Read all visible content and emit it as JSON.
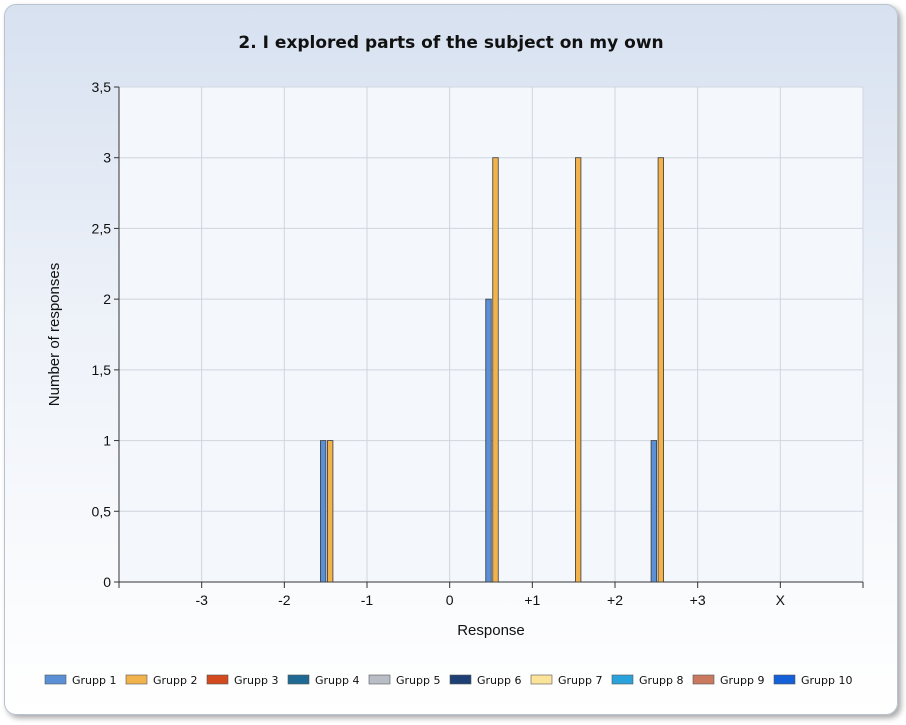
{
  "chart_data": {
    "type": "bar",
    "title": "2. I explored parts of the subject on my own",
    "xlabel": "Response",
    "ylabel": "Number of responses",
    "categories": [
      "-3",
      "-2",
      "-1",
      "0",
      "+1",
      "+2",
      "+3",
      "X"
    ],
    "y_ticks": [
      "0",
      "0,5",
      "1",
      "1,5",
      "2",
      "2,5",
      "3",
      "3,5"
    ],
    "ylim": [
      0,
      3.5
    ],
    "grid": true,
    "legend_position": "bottom",
    "series": [
      {
        "name": "Grupp 1",
        "color": "#5b8fd6",
        "values": [
          0,
          0,
          1,
          0,
          2,
          0,
          1,
          0
        ]
      },
      {
        "name": "Grupp 2",
        "color": "#f2b34c",
        "values": [
          0,
          0,
          1,
          0,
          3,
          3,
          3,
          0
        ]
      },
      {
        "name": "Grupp 3",
        "color": "#d24a1e",
        "values": [
          0,
          0,
          0,
          0,
          0,
          0,
          0,
          0
        ]
      },
      {
        "name": "Grupp 4",
        "color": "#1f6a94",
        "values": [
          0,
          0,
          0,
          0,
          0,
          0,
          0,
          0
        ]
      },
      {
        "name": "Grupp 5",
        "color": "#b9bec6",
        "values": [
          0,
          0,
          0,
          0,
          0,
          0,
          0,
          0
        ]
      },
      {
        "name": "Grupp 6",
        "color": "#1d3f74",
        "values": [
          0,
          0,
          0,
          0,
          0,
          0,
          0,
          0
        ]
      },
      {
        "name": "Grupp 7",
        "color": "#fbe39a",
        "values": [
          0,
          0,
          0,
          0,
          0,
          0,
          0,
          0
        ]
      },
      {
        "name": "Grupp 8",
        "color": "#2aa2db",
        "values": [
          0,
          0,
          0,
          0,
          0,
          0,
          0,
          0
        ]
      },
      {
        "name": "Grupp 9",
        "color": "#c97a5e",
        "values": [
          0,
          0,
          0,
          0,
          0,
          0,
          0,
          0
        ]
      },
      {
        "name": "Grupp 10",
        "color": "#1460d8",
        "values": [
          0,
          0,
          0,
          0,
          0,
          0,
          0,
          0
        ]
      }
    ]
  }
}
